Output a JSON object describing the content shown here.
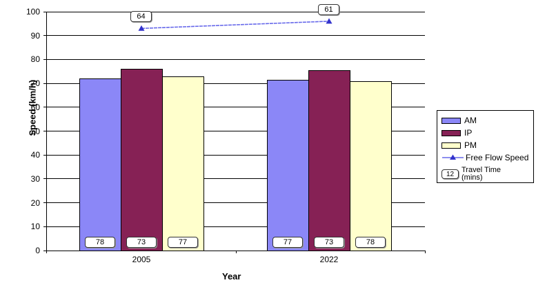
{
  "chart_data": {
    "type": "bar_line_combo",
    "title": "",
    "xlabel": "Year",
    "ylabel": "Speed (km/h)",
    "ylim": [
      0,
      100
    ],
    "yticks": [
      0,
      10,
      20,
      30,
      40,
      50,
      60,
      70,
      80,
      90,
      100
    ],
    "categories": [
      "2005",
      "2022"
    ],
    "grid": "horizontal",
    "series": [
      {
        "name": "AM",
        "type": "bar",
        "color": "#8B87F7",
        "values": [
          72,
          71.5
        ],
        "travel_time_mins": [
          "78",
          "77"
        ]
      },
      {
        "name": "IP",
        "type": "bar",
        "color": "#862155",
        "values": [
          76,
          75.5
        ],
        "travel_time_mins": [
          "73",
          "73"
        ]
      },
      {
        "name": "PM",
        "type": "bar",
        "color": "#FFFFCC",
        "values": [
          73,
          71
        ],
        "travel_time_mins": [
          "77",
          "78"
        ]
      },
      {
        "name": "Free Flow Speed",
        "type": "line",
        "color": "#6668EA",
        "marker_color": "#3333CC",
        "values": [
          93,
          96
        ],
        "travel_time_mins": [
          "64",
          "61"
        ]
      }
    ],
    "legend": {
      "position": "right",
      "travel_time_sample": "12",
      "travel_time_label": "Travel Time",
      "travel_time_unit": "(mins)"
    }
  }
}
